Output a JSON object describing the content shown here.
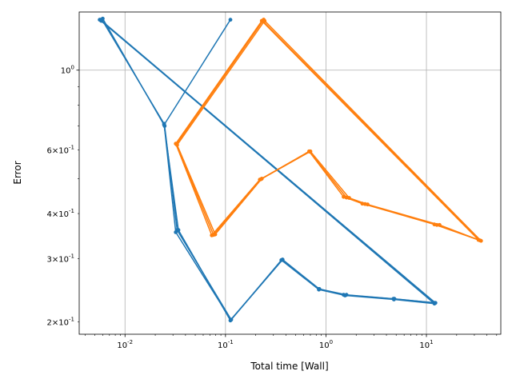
{
  "chart_data": {
    "type": "line",
    "xlabel": "Total time [Wall]",
    "ylabel": "Error",
    "xscale": "log",
    "yscale": "log",
    "xlim": [
      0.0035,
      55
    ],
    "ylim": [
      0.185,
      1.45
    ],
    "grid": "major",
    "x_major_ticks": [
      0.01,
      0.1,
      1,
      10
    ],
    "x_tick_labels": [
      "10^-2",
      "10^-1",
      "10^0",
      "10^1"
    ],
    "y_major_ticks": [
      1.0
    ],
    "y_major_labels": [
      "10^0"
    ],
    "y_minor_ticks": [
      0.2,
      0.3,
      0.4,
      0.6
    ],
    "y_minor_labels": [
      "2×10^-1",
      "3×10^-1",
      "4×10^-1",
      "6×10^-1"
    ],
    "series": [
      {
        "color": "#1f77b4",
        "lines": [
          {
            "width": 1.5,
            "points": [
              [
                0.112,
                1.38
              ],
              [
                0.0245,
                0.705
              ],
              [
                0.034,
                0.36
              ],
              [
                0.112,
                0.202
              ],
              [
                0.37,
                0.298
              ],
              [
                0.85,
                0.247
              ],
              [
                1.6,
                0.238
              ],
              [
                4.8,
                0.232
              ],
              [
                12.3,
                0.226
              ],
              [
                0.0056,
                1.38
              ]
            ]
          },
          {
            "width": 1.5,
            "points": [
              [
                0.0059,
                1.38
              ],
              [
                0.0245,
                0.71
              ],
              [
                0.032,
                0.355
              ],
              [
                0.113,
                0.203
              ],
              [
                0.37,
                0.298
              ],
              [
                0.86,
                0.247
              ],
              [
                1.5,
                0.238
              ],
              [
                4.7,
                0.232
              ],
              [
                12.1,
                0.226
              ],
              [
                0.0057,
                1.38
              ]
            ]
          },
          {
            "width": 1.5,
            "points": [
              [
                0.006,
                1.39
              ],
              [
                0.0248,
                0.7
              ],
              [
                0.033,
                0.36
              ],
              [
                0.114,
                0.203
              ],
              [
                0.36,
                0.297
              ],
              [
                0.85,
                0.246
              ],
              [
                1.55,
                0.237
              ],
              [
                4.75,
                0.231
              ],
              [
                12.0,
                0.225
              ],
              [
                0.0058,
                1.37
              ]
            ]
          }
        ]
      },
      {
        "color": "#ff7f0e",
        "lines": [
          {
            "width": 1.5,
            "points": [
              [
                0.23,
                1.37
              ],
              [
                0.032,
                0.625
              ],
              [
                0.073,
                0.348
              ],
              [
                0.22,
                0.497
              ],
              [
                0.68,
                0.595
              ],
              [
                1.5,
                0.445
              ],
              [
                2.3,
                0.426
              ],
              [
                12,
                0.373
              ],
              [
                33,
                0.338
              ],
              [
                0.23,
                1.37
              ]
            ]
          },
          {
            "width": 1.5,
            "points": [
              [
                0.245,
                1.37
              ],
              [
                0.033,
                0.62
              ],
              [
                0.079,
                0.35
              ],
              [
                0.23,
                0.5
              ],
              [
                0.7,
                0.595
              ],
              [
                1.7,
                0.442
              ],
              [
                2.6,
                0.424
              ],
              [
                13.5,
                0.372
              ],
              [
                35,
                0.336
              ],
              [
                0.24,
                1.38
              ]
            ]
          },
          {
            "width": 1.5,
            "points": [
              [
                0.24,
                1.38
              ],
              [
                0.0325,
                0.623
              ],
              [
                0.076,
                0.349
              ],
              [
                0.225,
                0.498
              ],
              [
                0.69,
                0.594
              ],
              [
                1.6,
                0.443
              ],
              [
                2.45,
                0.425
              ],
              [
                12.7,
                0.372
              ],
              [
                34,
                0.337
              ],
              [
                0.235,
                1.37
              ]
            ]
          }
        ]
      }
    ]
  }
}
